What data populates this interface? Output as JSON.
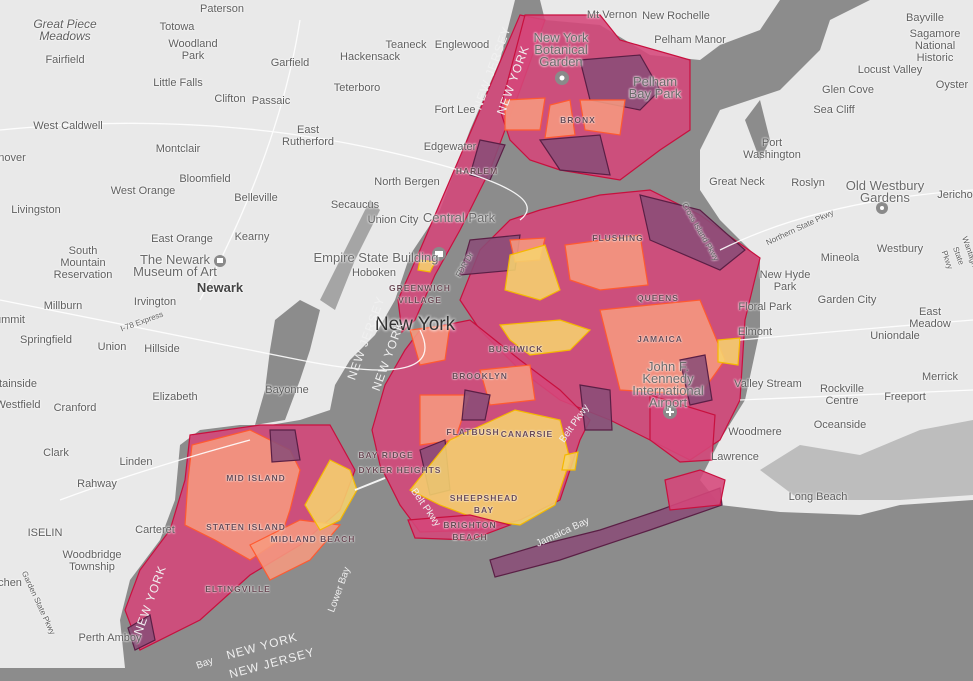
{
  "map": {
    "colors": {
      "water": "#8c8c8c",
      "land": "#e9e9e9",
      "park": "#d2d2d2",
      "high": "#d5477a",
      "very_high": "#8a4d78",
      "medium": "#f69a80",
      "low": "#f6d36e",
      "border_high": "#c8103e",
      "border_medium": "#ff5a30",
      "border_low": "#f5b800"
    },
    "labels": {
      "paterson": "Paterson",
      "totowa": "Totowa",
      "woodland_park": "Woodland\nPark",
      "great_piece_meadows": "Great Piece\nMeadows",
      "fairfield": "Fairfield",
      "little_falls": "Little Falls",
      "garfield": "Garfield",
      "clifton": "Clifton",
      "passaic": "Passaic",
      "hackensack": "Hackensack",
      "teaneck": "Teaneck",
      "englewood": "Englewood",
      "teterboro": "Teterboro",
      "fort_lee": "Fort Lee",
      "edgewater": "Edgewater",
      "east_rutherford": "East\nRutherford",
      "west_caldwell": "West Caldwell",
      "hanover": "nover",
      "montclair": "Montclair",
      "bloomfield": "Bloomfield",
      "west_orange": "West Orange",
      "livingston": "Livingston",
      "belleville": "Belleville",
      "north_bergen": "North Bergen",
      "secaucus": "Secaucus",
      "union_city": "Union City",
      "east_orange": "East Orange",
      "kearny": "Kearny",
      "south_mountain": "South\nMountain\nReservation",
      "newark_museum": "The Newark\nMuseum of Art",
      "newark": "Newark",
      "empire_state": "Empire State Building",
      "hoboken": "Hoboken",
      "greenwich_village": "GREENWICH\nVILLAGE",
      "new_york": "New York",
      "millburn": "Millburn",
      "irvington": "Irvington",
      "summit": "ummit",
      "springfield": "Springfield",
      "union": "Union",
      "hillside": "Hillside",
      "bayonne": "Bayonne",
      "elizabeth": "Elizabeth",
      "mountainside": "tainside",
      "westfield": "Westfield",
      "cranford": "Cranford",
      "clark": "Clark",
      "linden": "Linden",
      "rahway": "Rahway",
      "carteret": "Carteret",
      "iselin": "ISELIN",
      "woodbridge": "Woodbridge\nTownship",
      "perth_amboy": "Perth Amboy",
      "edison": "chen",
      "botanical_garden": "New York\nBotanical\nGarden",
      "mt_vernon": "Mt Vernon",
      "new_rochelle": "New Rochelle",
      "pelham_manor": "Pelham Manor",
      "pelham_bay_park": "Pelham\nBay Park",
      "bronx": "BRONX",
      "harlem": "HARLEM",
      "central_park": "Central Park",
      "flushing": "FLUSHING",
      "queens": "QUEENS",
      "jamaica": "JAMAICA",
      "jfk": "John F.\nKennedy\nInternational\nAirport",
      "bushwick": "BUSHWICK",
      "brooklyn": "BROOKLYN",
      "flatbush": "FLATBUSH",
      "canarsie": "CANARSIE",
      "bay_ridge": "BAY RIDGE",
      "dyker_heights": "DYKER HEIGHTS",
      "sheepshead_bay": "SHEEPSHEAD\nBAY",
      "brighton_beach": "BRIGHTON\nBEACH",
      "jamaica_bay": "Jamaica Bay",
      "belt_pkwy": "Belt Pkwy",
      "mid_island": "MID ISLAND",
      "staten_island": "STATEN ISLAND",
      "midland_beach": "MIDLAND BEACH",
      "eltingville": "ELTINGVILLE",
      "lower_bay": "Lower Bay",
      "bay": "Bay",
      "nj_state": "NEW JERSEY",
      "ny_state": "NEW YORK",
      "bayville": "Bayville",
      "sagamore": "Sagamore\nNational Historic",
      "locust_valley": "Locust Valley",
      "glen_cove": "Glen Cove",
      "oyster": "Oyster",
      "sea_cliff": "Sea Cliff",
      "port_washington": "Port\nWashington",
      "great_neck": "Great Neck",
      "roslyn": "Roslyn",
      "old_westbury": "Old Westbury\nGardens",
      "jericho": "Jericho",
      "westbury": "Westbury",
      "mineola": "Mineola",
      "new_hyde_park": "New Hyde\nPark",
      "floral_park": "Floral Park",
      "garden_city": "Garden City",
      "east_meadow": "East Meadow",
      "elmont": "Elmont",
      "uniondale": "Uniondale",
      "valley_stream": "Valley Stream",
      "rockville_centre": "Rockville\nCentre",
      "freeport": "Freeport",
      "merrick": "Merrick",
      "oceanside": "Oceanside",
      "woodmere": "Woodmere",
      "lawrence": "Lawrence",
      "long_beach": "Long Beach",
      "garden_state_pkwy": "Garden State Pkwy",
      "cross_island_pkwy": "Cross Island Pkwy",
      "northern_state_pkwy": "Northern State Pkwy",
      "wantagh_pkwy": "Wantagh State Pkwy",
      "express_78": "I-78 Express",
      "east_river_dr": "FDR Dr"
    },
    "icons": {
      "museum": "museum-icon",
      "garden": "flower-icon",
      "camera": "camera-icon",
      "airport": "airplane-icon"
    }
  }
}
